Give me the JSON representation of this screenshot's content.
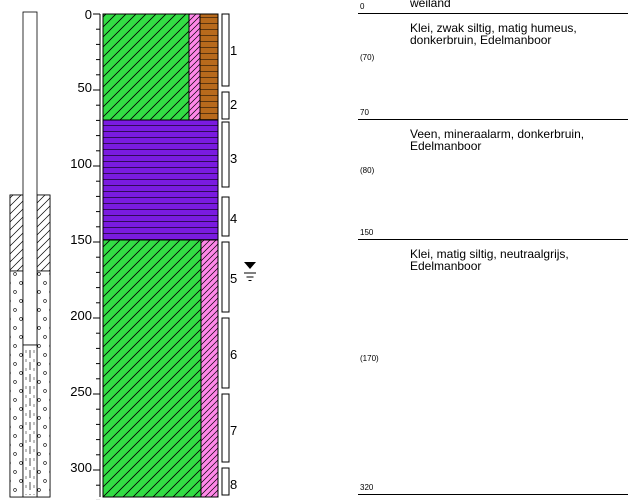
{
  "header_label": "weiland",
  "depth_axis": {
    "ticks": [
      "0",
      "50",
      "100",
      "150",
      "200",
      "250",
      "300"
    ]
  },
  "layers": [
    {
      "top": 0,
      "bottom": 70,
      "description": "Klei, zwak siltig, matig humeus,\ndonkerbruin, Edelmanboor",
      "top_label": "0",
      "thickness_label": "(70)",
      "color": "#33dd44"
    },
    {
      "top": 70,
      "bottom": 150,
      "description": "Veen, mineraalarm, donkerbruin,\nEdelmanboor",
      "top_label": "70",
      "thickness_label": "(80)",
      "color": "#7a1be0"
    },
    {
      "top": 150,
      "bottom": 320,
      "description": "Klei, matig siltig, neutraalgrijs,\nEdelmanboor",
      "top_label": "150",
      "thickness_label": "(170)",
      "color": "#33dd44"
    }
  ],
  "bottom_label": "320",
  "samples": [
    "1",
    "2",
    "3",
    "4",
    "5",
    "6",
    "7",
    "8"
  ],
  "colors": {
    "clay": "#33dd44",
    "peat": "#7a1be0",
    "humus": "#b86a1c",
    "silt": "#ff88e8"
  },
  "icons": {
    "water_level": "groundwater-level-icon"
  }
}
